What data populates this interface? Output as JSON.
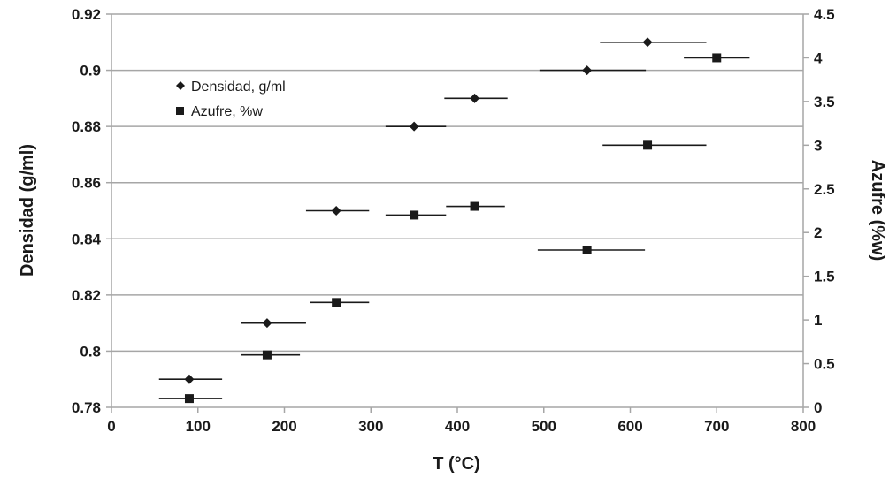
{
  "chart_data": {
    "type": "scatter",
    "xlabel": "T (°C)",
    "ylabel_left": "Densidad (g/ml)",
    "ylabel_right": "Azufre (%w)",
    "xlim": [
      0,
      800
    ],
    "x_ticks": [
      0,
      100,
      200,
      300,
      400,
      500,
      600,
      700,
      800
    ],
    "ylim_left": [
      0.78,
      0.92
    ],
    "y_ticks_left": [
      0.78,
      0.8,
      0.82,
      0.84,
      0.86,
      0.88,
      0.9,
      0.92
    ],
    "ylim_right": [
      0,
      4.5
    ],
    "y_ticks_right": [
      0,
      0.5,
      1,
      1.5,
      2,
      2.5,
      3,
      3.5,
      4,
      4.5
    ],
    "grid": "horizontal",
    "legend_position": "top-left",
    "series": [
      {
        "name": "Densidad, g/ml",
        "marker": "diamond",
        "axis": "left",
        "color": "#1a1a1a",
        "points": [
          {
            "x": 90,
            "y": 0.79,
            "xmin": 55,
            "xmax": 128
          },
          {
            "x": 180,
            "y": 0.81,
            "xmin": 150,
            "xmax": 225
          },
          {
            "x": 260,
            "y": 0.85,
            "xmin": 225,
            "xmax": 298
          },
          {
            "x": 350,
            "y": 0.88,
            "xmin": 317,
            "xmax": 387
          },
          {
            "x": 420,
            "y": 0.89,
            "xmin": 385,
            "xmax": 458
          },
          {
            "x": 550,
            "y": 0.9,
            "xmin": 495,
            "xmax": 618
          },
          {
            "x": 620,
            "y": 0.91,
            "xmin": 565,
            "xmax": 688
          }
        ]
      },
      {
        "name": "Azufre, %w",
        "marker": "square",
        "axis": "right",
        "color": "#1a1a1a",
        "points": [
          {
            "x": 90,
            "y": 0.1,
            "xmin": 55,
            "xmax": 128
          },
          {
            "x": 180,
            "y": 0.6,
            "xmin": 150,
            "xmax": 218
          },
          {
            "x": 260,
            "y": 1.2,
            "xmin": 230,
            "xmax": 298
          },
          {
            "x": 350,
            "y": 2.2,
            "xmin": 317,
            "xmax": 387
          },
          {
            "x": 420,
            "y": 2.3,
            "xmin": 387,
            "xmax": 455
          },
          {
            "x": 550,
            "y": 1.8,
            "xmin": 493,
            "xmax": 617
          },
          {
            "x": 620,
            "y": 3.0,
            "xmin": 568,
            "xmax": 688
          },
          {
            "x": 700,
            "y": 4.0,
            "xmin": 662,
            "xmax": 738
          }
        ]
      }
    ]
  }
}
